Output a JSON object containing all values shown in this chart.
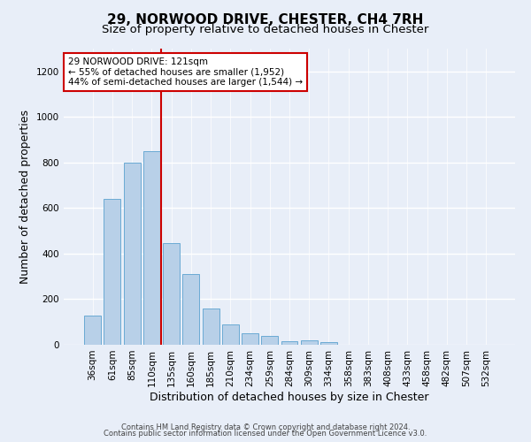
{
  "title1": "29, NORWOOD DRIVE, CHESTER, CH4 7RH",
  "title2": "Size of property relative to detached houses in Chester",
  "xlabel": "Distribution of detached houses by size in Chester",
  "ylabel": "Number of detached properties",
  "categories": [
    "36sqm",
    "61sqm",
    "85sqm",
    "110sqm",
    "135sqm",
    "160sqm",
    "185sqm",
    "210sqm",
    "234sqm",
    "259sqm",
    "284sqm",
    "309sqm",
    "334sqm",
    "358sqm",
    "383sqm",
    "408sqm",
    "433sqm",
    "458sqm",
    "482sqm",
    "507sqm",
    "532sqm"
  ],
  "values": [
    128,
    640,
    800,
    850,
    445,
    310,
    160,
    90,
    50,
    40,
    15,
    18,
    12,
    0,
    0,
    0,
    0,
    0,
    0,
    0,
    0
  ],
  "bar_color": "#b8d0e8",
  "bar_edge_color": "#6aaad4",
  "vline_x_index": 3.5,
  "vline_color": "#cc0000",
  "annotation_text": "29 NORWOOD DRIVE: 121sqm\n← 55% of detached houses are smaller (1,952)\n44% of semi-detached houses are larger (1,544) →",
  "annotation_box_color": "white",
  "annotation_box_edge": "#cc0000",
  "ylim": [
    0,
    1300
  ],
  "yticks": [
    0,
    200,
    400,
    600,
    800,
    1000,
    1200
  ],
  "background_color": "#e8eef8",
  "grid_color": "white",
  "footer1": "Contains HM Land Registry data © Crown copyright and database right 2024.",
  "footer2": "Contains public sector information licensed under the Open Government Licence v3.0.",
  "title1_fontsize": 11,
  "title2_fontsize": 9.5,
  "xlabel_fontsize": 9,
  "ylabel_fontsize": 9,
  "annotation_fontsize": 7.5,
  "tick_fontsize": 7.5
}
